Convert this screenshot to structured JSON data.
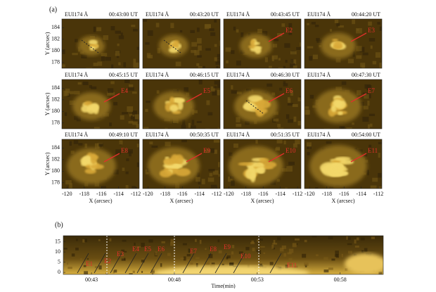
{
  "panel_a": {
    "label": "(a)",
    "frames": [
      {
        "title": "EUI174 Å",
        "time": "00:43:00 UT"
      },
      {
        "title": "EUI174 Å",
        "time": "00:43:20 UT"
      },
      {
        "title": "EUI174 Å",
        "time": "00:43:45 UT",
        "event": "E2"
      },
      {
        "title": "EUI174 Å",
        "time": "00:44:20 UT",
        "event": "E3"
      },
      {
        "title": "EUI174 Å",
        "time": "00:45:15 UT",
        "event": "E4"
      },
      {
        "title": "EUI174 Å",
        "time": "00:46:15 UT",
        "event": "E5"
      },
      {
        "title": "EUI174 Å",
        "time": "00:46:30 UT",
        "event": "E6"
      },
      {
        "title": "EUI174 Å",
        "time": "00:47:30 UT",
        "event": "E7"
      },
      {
        "title": "EUI174 Å",
        "time": "00:49:10 UT",
        "event": "E8"
      },
      {
        "title": "EUI174 Å",
        "time": "00:50:35 UT",
        "event": "E9"
      },
      {
        "title": "EUI174 Å",
        "time": "00:51:35 UT",
        "event": "E10"
      },
      {
        "title": "EUI174 Å",
        "time": "00:54:00 UT",
        "event": "E11"
      }
    ],
    "ylabel": "Y (arcsec)",
    "xlabel": "X (arcsec)",
    "xlim": [
      -120.6,
      -111.6
    ],
    "ylim": [
      177,
      185.5
    ],
    "xticks": [
      -120,
      -118,
      -116,
      -114,
      -112
    ],
    "yticks": [
      178,
      180,
      182,
      184
    ]
  },
  "panel_b": {
    "label": "(b)",
    "xlabel": "Time(min)",
    "xlim": [
      41.3,
      60.6
    ],
    "ylim": [
      -1,
      18
    ],
    "xticks": [
      {
        "value": 43,
        "label": "00:43"
      },
      {
        "value": 48,
        "label": "00:48"
      },
      {
        "value": 53,
        "label": "00:53"
      },
      {
        "value": 58,
        "label": "00:58"
      }
    ],
    "yticks": [
      0,
      5,
      10,
      15
    ],
    "events": [
      "E1",
      "E2",
      "E3",
      "E4",
      "E5",
      "E6",
      "E7",
      "E8",
      "E9",
      "E10",
      "E11"
    ]
  }
}
